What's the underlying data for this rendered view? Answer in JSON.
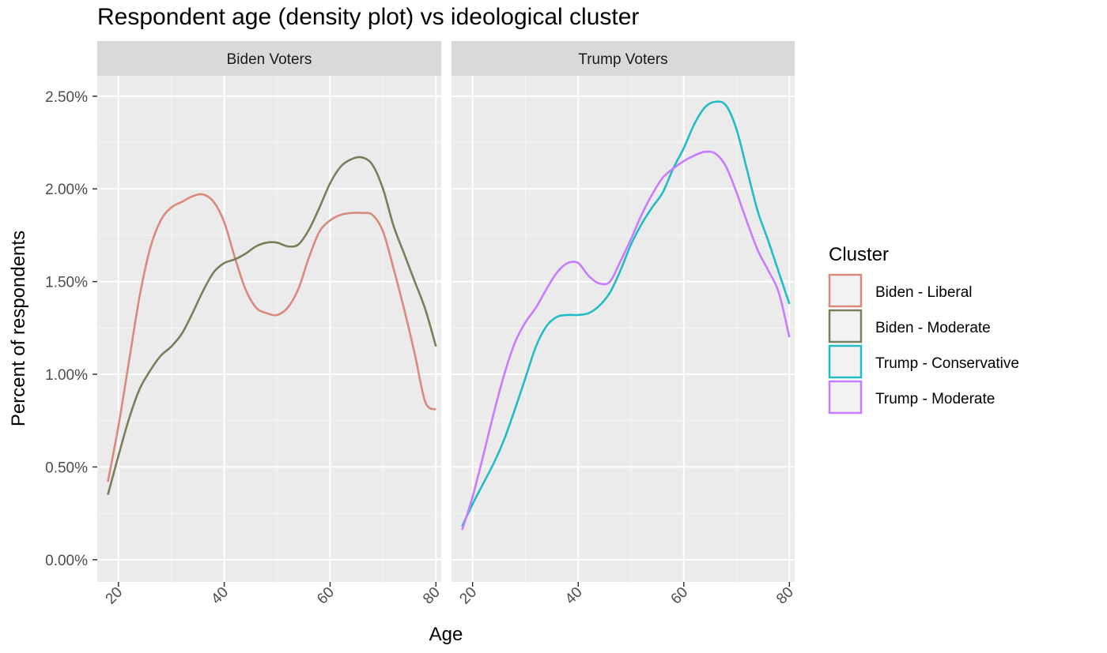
{
  "chart_data": {
    "type": "line",
    "title": "Respondent age (density plot) vs ideological cluster",
    "xlabel": "Age",
    "ylabel": "Percent of respondents",
    "xlim": [
      16,
      81
    ],
    "ylim": [
      -0.0012,
      0.0261
    ],
    "x_ticks": [
      20,
      40,
      60,
      80
    ],
    "x_tick_labels": [
      "20",
      "40",
      "60",
      "80"
    ],
    "y_ticks": [
      0,
      0.005,
      0.01,
      0.015,
      0.02,
      0.025
    ],
    "y_tick_labels": [
      "0.00%",
      "0.50%",
      "1.00%",
      "1.50%",
      "2.00%",
      "2.50%"
    ],
    "grid": true,
    "legend": {
      "title": "Cluster",
      "placement": "right",
      "entries": [
        {
          "label": "Biden - Liberal",
          "color": "#d9897e"
        },
        {
          "label": "Biden - Moderate",
          "color": "#7d7d5c"
        },
        {
          "label": "Trump - Conservative",
          "color": "#21bcc5"
        },
        {
          "label": "Trump - Moderate",
          "color": "#c77cff"
        }
      ]
    },
    "panels": [
      {
        "strip": "Biden Voters",
        "series": [
          {
            "name": "Biden - Liberal",
            "color": "#d9897e",
            "x": [
              18,
              20,
              22,
              24,
              26,
              28,
              30,
              32,
              34,
              36,
              38,
              40,
              42,
              44,
              46,
              48,
              50,
              52,
              54,
              56,
              58,
              60,
              62,
              64,
              66,
              68,
              70,
              72,
              74,
              76,
              78,
              80
            ],
            "y": [
              0.0042,
              0.0072,
              0.0107,
              0.0142,
              0.0168,
              0.0183,
              0.019,
              0.0193,
              0.0196,
              0.0197,
              0.0193,
              0.0182,
              0.0163,
              0.0146,
              0.0136,
              0.0133,
              0.0132,
              0.0136,
              0.0146,
              0.0163,
              0.0177,
              0.0183,
              0.0186,
              0.0187,
              0.0187,
              0.0186,
              0.0177,
              0.0157,
              0.0135,
              0.0111,
              0.0085,
              0.0081
            ]
          },
          {
            "name": "Biden - Moderate",
            "color": "#7d7d5c",
            "x": [
              18,
              20,
              22,
              24,
              26,
              28,
              30,
              32,
              34,
              36,
              38,
              40,
              42,
              44,
              46,
              48,
              50,
              52,
              54,
              56,
              58,
              60,
              62,
              64,
              66,
              68,
              70,
              72,
              74,
              76,
              78,
              80
            ],
            "y": [
              0.0035,
              0.0056,
              0.0076,
              0.0092,
              0.0102,
              0.011,
              0.0115,
              0.0122,
              0.0133,
              0.0145,
              0.0155,
              0.016,
              0.0162,
              0.0165,
              0.0169,
              0.0171,
              0.0171,
              0.0169,
              0.017,
              0.0178,
              0.019,
              0.0203,
              0.0212,
              0.0216,
              0.0217,
              0.0213,
              0.02,
              0.018,
              0.0165,
              0.015,
              0.0135,
              0.0115
            ]
          }
        ]
      },
      {
        "strip": "Trump Voters",
        "series": [
          {
            "name": "Trump - Conservative",
            "color": "#21bcc5",
            "x": [
              18,
              20,
              22,
              24,
              26,
              28,
              30,
              32,
              34,
              36,
              38,
              40,
              42,
              44,
              46,
              48,
              50,
              52,
              54,
              56,
              58,
              60,
              62,
              64,
              66,
              68,
              70,
              72,
              74,
              76,
              78,
              80
            ],
            "y": [
              0.0018,
              0.003,
              0.0041,
              0.0052,
              0.0065,
              0.0081,
              0.0098,
              0.0115,
              0.0126,
              0.0131,
              0.0132,
              0.0132,
              0.0133,
              0.0137,
              0.0144,
              0.0156,
              0.017,
              0.0181,
              0.019,
              0.0198,
              0.0211,
              0.0222,
              0.0235,
              0.0244,
              0.0247,
              0.0245,
              0.0232,
              0.021,
              0.0188,
              0.0172,
              0.0155,
              0.0138
            ]
          },
          {
            "name": "Trump - Moderate",
            "color": "#c77cff",
            "x": [
              18,
              20,
              22,
              24,
              26,
              28,
              30,
              32,
              34,
              36,
              38,
              40,
              42,
              44,
              46,
              48,
              50,
              52,
              54,
              56,
              58,
              60,
              62,
              64,
              66,
              68,
              70,
              72,
              74,
              76,
              78,
              80
            ],
            "y": [
              0.0016,
              0.0034,
              0.0056,
              0.0079,
              0.01,
              0.0117,
              0.0128,
              0.0136,
              0.0146,
              0.0155,
              0.016,
              0.016,
              0.0153,
              0.0149,
              0.015,
              0.0161,
              0.0173,
              0.0186,
              0.0197,
              0.0206,
              0.0211,
              0.0215,
              0.0218,
              0.022,
              0.0219,
              0.0212,
              0.0198,
              0.0182,
              0.0167,
              0.0156,
              0.0144,
              0.012
            ]
          }
        ]
      }
    ]
  }
}
